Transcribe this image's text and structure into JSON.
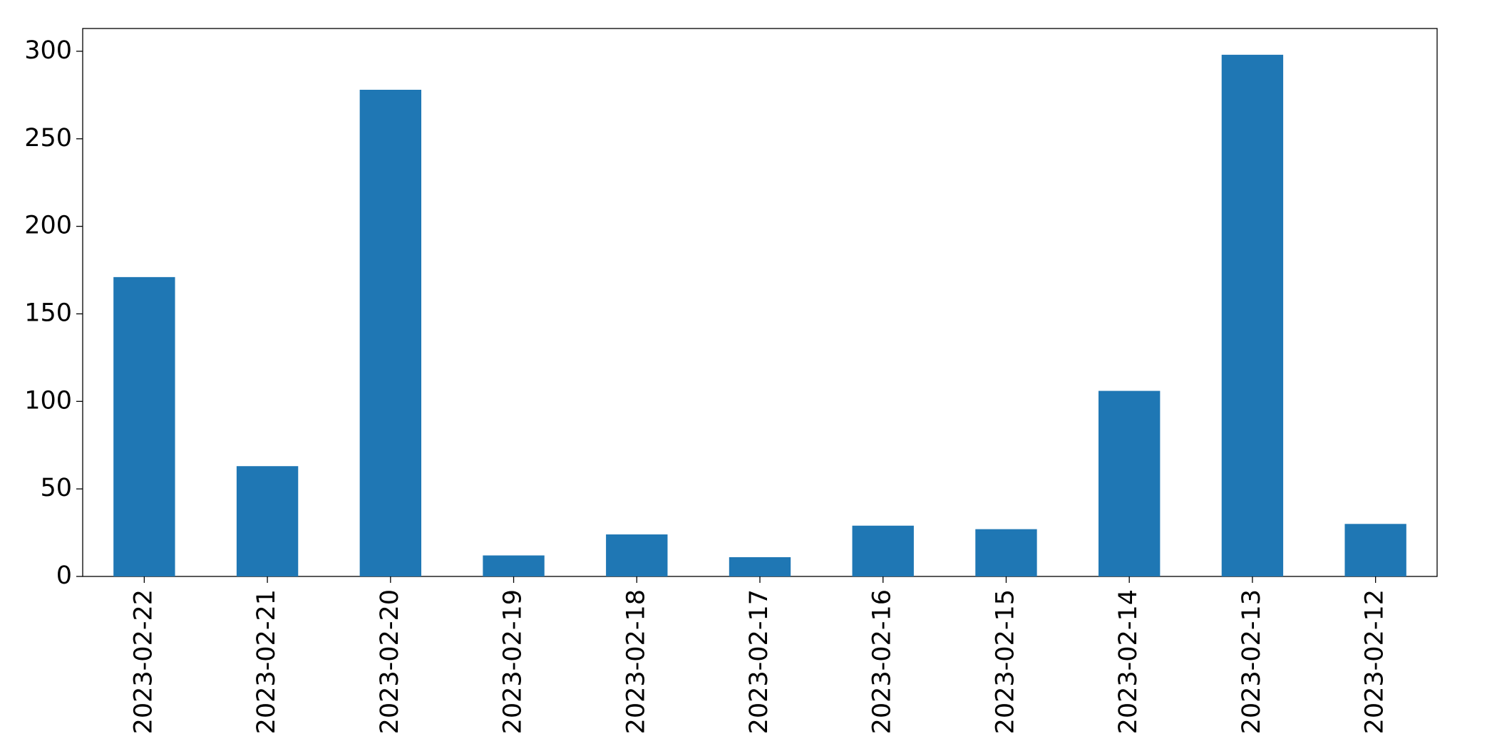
{
  "chart_data": {
    "type": "bar",
    "categories": [
      "2023-02-22",
      "2023-02-21",
      "2023-02-20",
      "2023-02-19",
      "2023-02-18",
      "2023-02-17",
      "2023-02-16",
      "2023-02-15",
      "2023-02-14",
      "2023-02-13",
      "2023-02-12"
    ],
    "values": [
      171,
      63,
      278,
      12,
      24,
      11,
      29,
      27,
      106,
      298,
      30
    ],
    "color": "#1f77b4",
    "ylim": [
      0,
      313
    ],
    "yticks": [
      0,
      50,
      100,
      150,
      200,
      250,
      300
    ],
    "grid": false
  }
}
